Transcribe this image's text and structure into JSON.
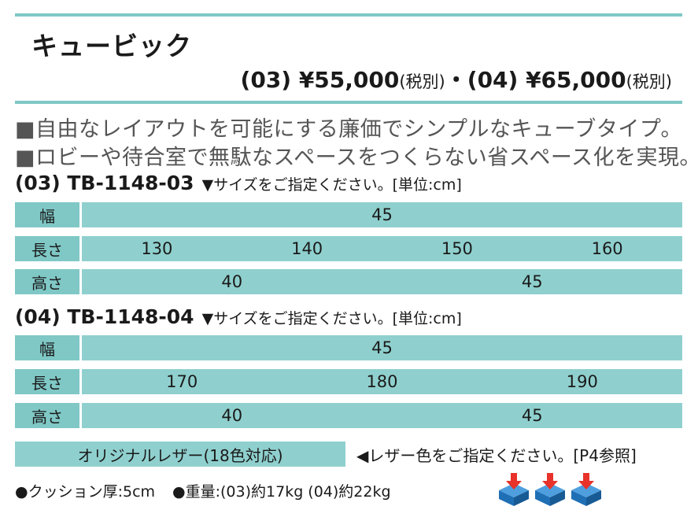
{
  "product": {
    "title": "キュービック",
    "price_line": {
      "p03_code": "(03)",
      "p03_price": "¥55,000",
      "p03_tax": "(税別)",
      "sep": "・",
      "p04_code": "(04)",
      "p04_price": "¥65,000",
      "p04_tax": "(税別)"
    },
    "descriptions": [
      "■自由なレイアウトを可能にする廉価でシンプルなキューブタイプ。",
      "■ロビーや待合室で無駄なスペースをつくらない省スペース化を実現。"
    ]
  },
  "models": [
    {
      "code": "(03) TB-1148-03",
      "note": "▼サイズをご指定ください。[単位:cm]",
      "rows": [
        {
          "label": "幅",
          "values": [
            "45"
          ]
        },
        {
          "label": "長さ",
          "values": [
            "130",
            "140",
            "150",
            "160"
          ]
        },
        {
          "label": "高さ",
          "values": [
            "40",
            "45"
          ]
        }
      ]
    },
    {
      "code": "(04) TB-1148-04",
      "note": "▼サイズをご指定ください。[単位:cm]",
      "rows": [
        {
          "label": "幅",
          "values": [
            "45"
          ]
        },
        {
          "label": "長さ",
          "values": [
            "170",
            "180",
            "190"
          ]
        },
        {
          "label": "高さ",
          "values": [
            "40",
            "45"
          ]
        }
      ]
    }
  ],
  "leather": {
    "label": "オリジナルレザー(18色対応)",
    "note": "◀レザー色をご指定ください。[P4参照]"
  },
  "specs": {
    "cushion": "●クッション厚:5cm",
    "weight": "●重量:(03)約17kg (04)約22kg"
  },
  "icons": [
    "cube-down-arrow-icon",
    "cube-down-arrow-icon",
    "cube-down-arrow-icon"
  ],
  "colors": {
    "teal_label": "#7fc8c6",
    "teal_row": "#8fd0ce",
    "arrow_red": "#e8322a",
    "cube_blue": "#1f6fb5"
  }
}
